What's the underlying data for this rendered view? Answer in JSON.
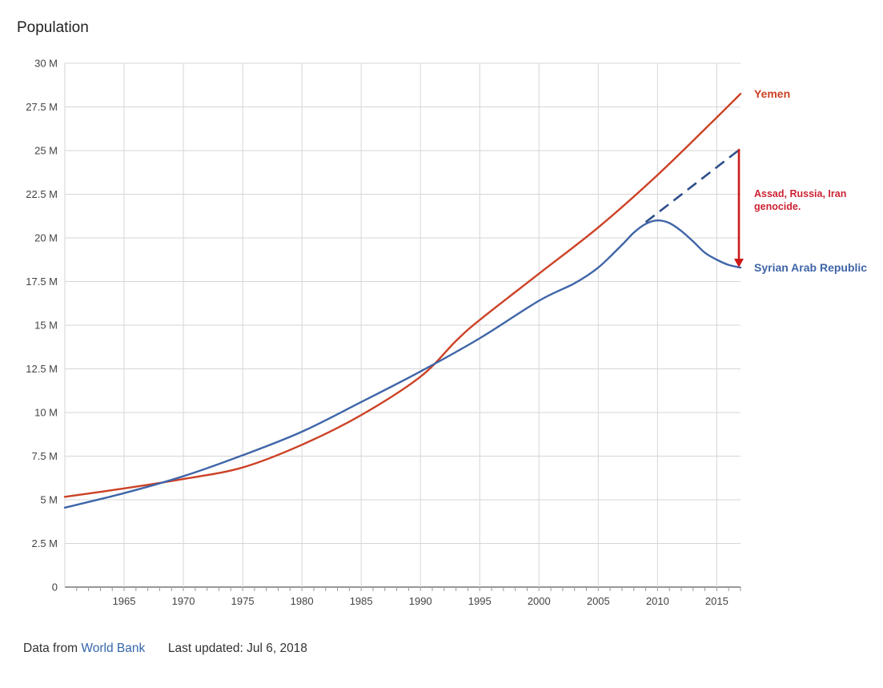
{
  "chart_data": {
    "type": "line",
    "title": "Population",
    "xlim": [
      1960,
      2017
    ],
    "ylim": [
      0,
      30000000
    ],
    "x_ticks": [
      1965,
      1970,
      1975,
      1980,
      1985,
      1990,
      1995,
      2000,
      2005,
      2010,
      2015
    ],
    "y_ticks": [
      0,
      2500000,
      5000000,
      7500000,
      10000000,
      12500000,
      15000000,
      17500000,
      20000000,
      22500000,
      25000000,
      27500000,
      30000000
    ],
    "y_tick_labels": [
      "0",
      "2.5 M",
      "5 M",
      "7.5 M",
      "10 M",
      "12.5 M",
      "15 M",
      "17.5 M",
      "20 M",
      "22.5 M",
      "25 M",
      "27.5 M",
      "30 M"
    ],
    "grid": true,
    "legend": "inline-right",
    "series": [
      {
        "name": "Yemen",
        "color": "#cc4125",
        "x": [
          1960,
          1965,
          1970,
          1975,
          1980,
          1985,
          1990,
          1993,
          1995,
          2000,
          2005,
          2010,
          2015,
          2017
        ],
        "y": [
          5170000,
          5650000,
          6190000,
          6850000,
          8150000,
          9850000,
          12050000,
          14100000,
          15300000,
          17950000,
          20600000,
          23600000,
          26900000,
          28250000
        ]
      },
      {
        "name": "Syrian Arab Republic",
        "color": "#3f65a8",
        "x": [
          1960,
          1965,
          1970,
          1975,
          1980,
          1985,
          1990,
          1995,
          2000,
          2003,
          2005,
          2007,
          2008,
          2009,
          2010,
          2011,
          2012,
          2013,
          2014,
          2015,
          2016,
          2017
        ],
        "y": [
          4550000,
          5380000,
          6350000,
          7550000,
          8900000,
          10600000,
          12350000,
          14250000,
          16400000,
          17400000,
          18300000,
          19600000,
          20300000,
          20800000,
          21000000,
          20850000,
          20400000,
          19800000,
          19150000,
          18750000,
          18450000,
          18300000
        ]
      }
    ],
    "annotations": {
      "projection": {
        "x": [
          2009,
          2017
        ],
        "y": [
          20900000,
          25100000
        ],
        "color": "#2e4f8a"
      },
      "arrow": {
        "x": 2017,
        "y_from": 25100000,
        "y_to": 18300000,
        "color": "#cc1a1a"
      },
      "text_lines": [
        "Assad, Russia, Iran",
        "genocide."
      ],
      "text_color": "#cc2233"
    }
  },
  "footer": {
    "source_prefix": "Data from",
    "source_link": "World Bank",
    "last_updated": "Last updated: Jul 6, 2018"
  }
}
